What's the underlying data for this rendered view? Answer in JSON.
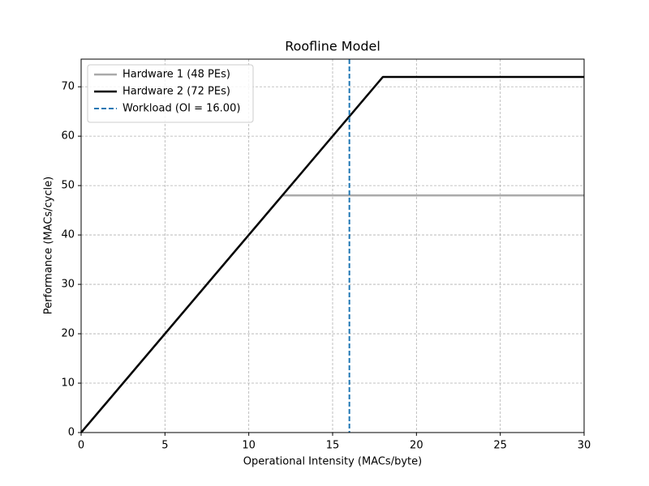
{
  "chart_data": {
    "type": "line",
    "title": "Roofline Model",
    "x_label": "Operational Intensity (MACs/byte)",
    "y_label": "Performance (MACs/cycle)",
    "x": [
      0,
      12,
      18,
      30
    ],
    "series": [
      {
        "name": "Hardware 1 (48 PEs)",
        "color": "#aaaaaa",
        "values": [
          0,
          48,
          48,
          48
        ]
      },
      {
        "name": "Hardware 2 (72 PEs)",
        "color": "#000000",
        "values": [
          0,
          48,
          72,
          72
        ]
      }
    ],
    "vlines": [
      {
        "name": "Workload (OI = 16.00)",
        "color": "#1f77b4",
        "x": 16
      }
    ],
    "xlim": [
      0,
      30
    ],
    "ylim": [
      0,
      75.6
    ],
    "xticks": [
      0,
      5,
      10,
      15,
      20,
      25,
      30
    ],
    "yticks": [
      0,
      10,
      20,
      30,
      40,
      50,
      60,
      70
    ],
    "grid": true,
    "legend": "upper-left"
  }
}
